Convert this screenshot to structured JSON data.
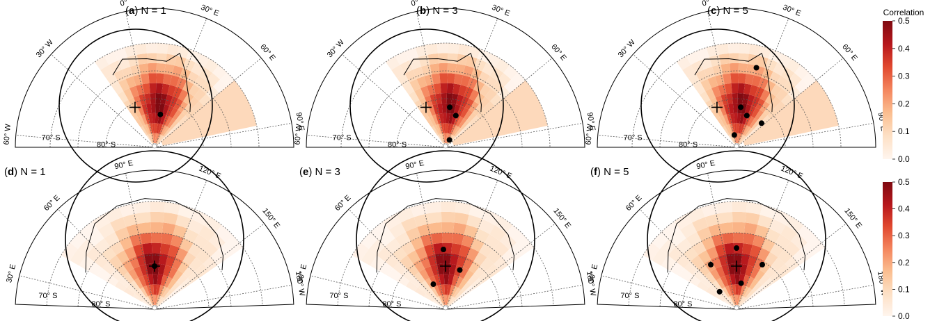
{
  "chart_data": {
    "type": "heatmap",
    "colorbar": {
      "title": "Correlation",
      "range": [
        0.0,
        0.5
      ],
      "ticks": [
        "0.0",
        "0.1",
        "0.2",
        "0.3",
        "0.4",
        "0.5"
      ],
      "colors": [
        "#fff5ee",
        "#fde0c5",
        "#fbbf91",
        "#f4865e",
        "#e0482f",
        "#b7171c",
        "#7f0a11"
      ]
    },
    "panels": [
      {
        "label": "(a)",
        "title": "N = 1",
        "projection": "south-polar sector",
        "lon_labels": [
          "60° W",
          "30° W",
          "0°",
          "30° E",
          "60° E",
          "90° E"
        ],
        "lat_labels": [
          "70° S",
          "80° S"
        ],
        "target_marker": "+",
        "sensor_count": 1,
        "peak_correlation": 0.5
      },
      {
        "label": "(b)",
        "title": "N = 3",
        "projection": "south-polar sector",
        "lon_labels": [
          "60° W",
          "30° W",
          "0°",
          "30° E",
          "60° E",
          "90° E"
        ],
        "lat_labels": [
          "70° S",
          "80° S"
        ],
        "target_marker": "+",
        "sensor_count": 3,
        "peak_correlation": 0.5
      },
      {
        "label": "(c)",
        "title": "N = 5",
        "projection": "south-polar sector",
        "lon_labels": [
          "60° W",
          "30° W",
          "0°",
          "30° E",
          "60° E",
          "90° E"
        ],
        "lat_labels": [
          "70° S",
          "80° S"
        ],
        "target_marker": "+",
        "sensor_count": 5,
        "peak_correlation": 0.5
      },
      {
        "label": "(d)",
        "title": "N = 1",
        "projection": "south-polar sector",
        "lon_labels": [
          "30° E",
          "60° E",
          "90° E",
          "120° E",
          "150° E",
          "180° W"
        ],
        "lat_labels": [
          "70° S",
          "80° S"
        ],
        "target_marker": "+",
        "sensor_count": 1,
        "peak_correlation": 0.5
      },
      {
        "label": "(e)",
        "title": "N = 3",
        "projection": "south-polar sector",
        "lon_labels": [
          "30° E",
          "60° E",
          "90° E",
          "120° E",
          "150° E",
          "180° W"
        ],
        "lat_labels": [
          "70° S",
          "80° S"
        ],
        "target_marker": "+",
        "sensor_count": 3,
        "peak_correlation": 0.5
      },
      {
        "label": "(f)",
        "title": "N = 5",
        "projection": "south-polar sector",
        "lon_labels": [
          "30° E",
          "60° E",
          "90° E",
          "120° E",
          "150° E",
          "180° W"
        ],
        "lat_labels": [
          "70° S",
          "80° S"
        ],
        "target_marker": "+",
        "sensor_count": 5,
        "peak_correlation": 0.5
      }
    ]
  }
}
